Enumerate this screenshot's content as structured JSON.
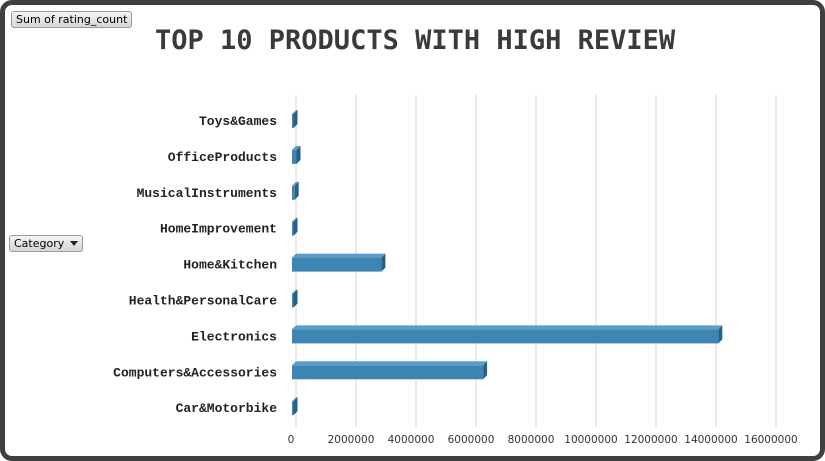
{
  "value_button": {
    "label": "Sum of rating_count"
  },
  "category_button": {
    "label": "Category",
    "icon": "dropdown-caret-icon"
  },
  "colors": {
    "bar_front": "#3d86b4",
    "bar_top": "#5c9dc7",
    "bar_side": "#2a5f82",
    "grid": "#d4d4d4",
    "frame": "#404040"
  },
  "chart_data": {
    "type": "bar",
    "orientation": "horizontal",
    "title": "TOP 10 PRODUCTS WITH HIGH REVIEW",
    "categories": [
      "Toys&Games",
      "OfficeProducts",
      "MusicalInstruments",
      "HomeImprovement",
      "Home&Kitchen",
      "Health&PersonalCare",
      "Electronics",
      "Computers&Accessories",
      "Car&Motorbike"
    ],
    "values": [
      15000,
      150000,
      90000,
      20000,
      2980000,
      15000,
      14210000,
      6370000,
      2000
    ],
    "xlim": [
      0,
      16000000
    ],
    "x_ticks": [
      0,
      2000000,
      4000000,
      6000000,
      8000000,
      10000000,
      12000000,
      14000000,
      16000000
    ],
    "x_tick_labels": [
      "0",
      "2000000",
      "4000000",
      "6000000",
      "8000000",
      "10000000",
      "12000000",
      "14000000",
      "16000000"
    ],
    "grid": true,
    "legend": false
  }
}
